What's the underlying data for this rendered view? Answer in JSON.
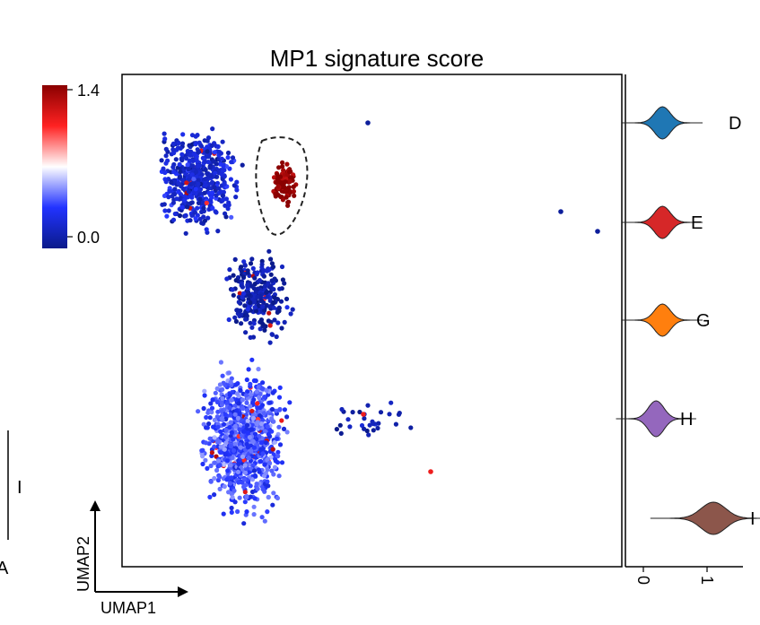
{
  "title": "MP1 signature score",
  "colorbar": {
    "max_label": "1.4",
    "min_label": "0.0",
    "colors": [
      "#0a1a8a",
      "#2233ff",
      "#ffffff",
      "#ff2222",
      "#8a0000"
    ]
  },
  "umap_axes": {
    "x_label": "UMAP1",
    "y_label": "UMAP2"
  },
  "edge_labels": {
    "left_bar": "I",
    "left_bottom": "A"
  },
  "highlight": {
    "style": "dashed"
  },
  "violins": [
    {
      "label": "D",
      "color": "#1f77b4"
    },
    {
      "label": "E",
      "color": "#d62728"
    },
    {
      "label": "G",
      "color": "#ff7f0e"
    },
    {
      "label": "H",
      "color": "#9467bd"
    },
    {
      "label": "I",
      "color": "#8c564b"
    }
  ],
  "chart_data": [
    {
      "type": "scatter",
      "title": "MP1 signature score",
      "xlabel": "UMAP1",
      "ylabel": "UMAP2",
      "color_scale": {
        "min": 0.0,
        "max": 1.4,
        "ticks": [
          1.4,
          0.0
        ]
      },
      "clusters": [
        {
          "name": "upper-left",
          "approx_score": 0.2
        },
        {
          "name": "middle-stem",
          "approx_score": 0.1
        },
        {
          "name": "lower-body",
          "approx_score": 0.4
        },
        {
          "name": "circled-group",
          "approx_score": 1.4
        },
        {
          "name": "outliers",
          "approx_score": 0.1
        }
      ]
    },
    {
      "type": "violin",
      "categories": [
        "D",
        "E",
        "G",
        "H",
        "I"
      ],
      "series": [
        {
          "name": "D",
          "mode": 0.3
        },
        {
          "name": "E",
          "mode": 0.3
        },
        {
          "name": "G",
          "mode": 0.3
        },
        {
          "name": "H",
          "mode": 0.2
        },
        {
          "name": "I",
          "mode": 1.1
        }
      ],
      "x_ticks": [
        "0",
        "1"
      ],
      "xlim": [
        -0.2,
        1.6
      ]
    }
  ]
}
